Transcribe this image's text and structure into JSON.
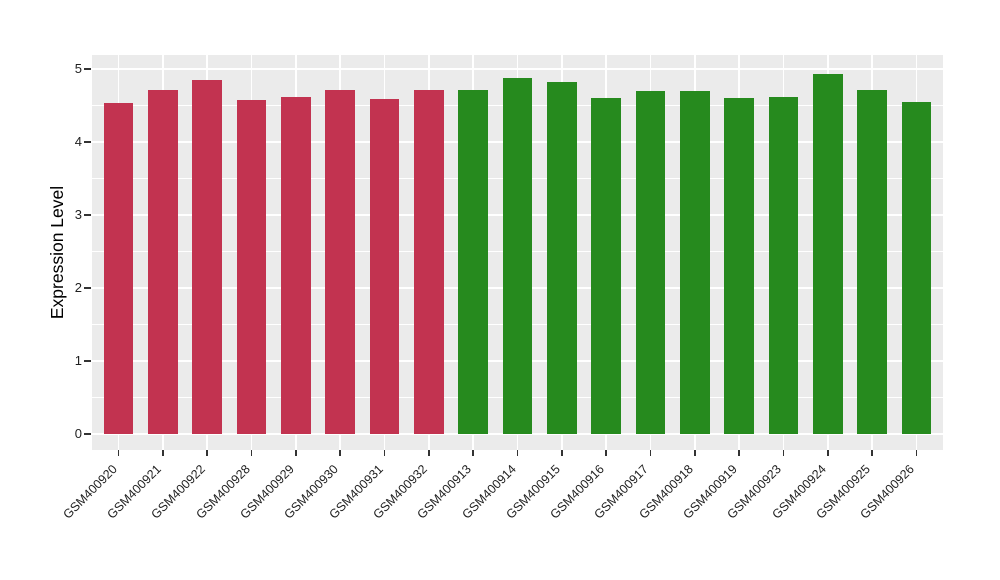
{
  "chart_data": {
    "type": "bar",
    "title": "",
    "xlabel": "",
    "ylabel": "Expression Level",
    "ylim": [
      0,
      5.17
    ],
    "yticks": [
      0,
      1,
      2,
      3,
      4,
      5
    ],
    "legend_position": "none",
    "grid": "white major and minor horizontal lines plus white vertical major lines on grey panel",
    "panel_background": "#EBEBEB",
    "group_colors": {
      "red_group": "#C23350",
      "green_group": "#268A1E"
    },
    "categories": [
      "GSM400920",
      "GSM400921",
      "GSM400922",
      "GSM400928",
      "GSM400929",
      "GSM400930",
      "GSM400931",
      "GSM400932",
      "GSM400913",
      "GSM400914",
      "GSM400915",
      "GSM400916",
      "GSM400917",
      "GSM400918",
      "GSM400919",
      "GSM400923",
      "GSM400924",
      "GSM400925",
      "GSM400926"
    ],
    "values": [
      4.54,
      4.71,
      4.85,
      4.58,
      4.62,
      4.71,
      4.59,
      4.71,
      4.71,
      4.88,
      4.82,
      4.6,
      4.7,
      4.7,
      4.6,
      4.61,
      4.93,
      4.71,
      4.55
    ],
    "bar_groups": [
      "red_group",
      "red_group",
      "red_group",
      "red_group",
      "red_group",
      "red_group",
      "red_group",
      "red_group",
      "green_group",
      "green_group",
      "green_group",
      "green_group",
      "green_group",
      "green_group",
      "green_group",
      "green_group",
      "green_group",
      "green_group",
      "green_group"
    ]
  }
}
